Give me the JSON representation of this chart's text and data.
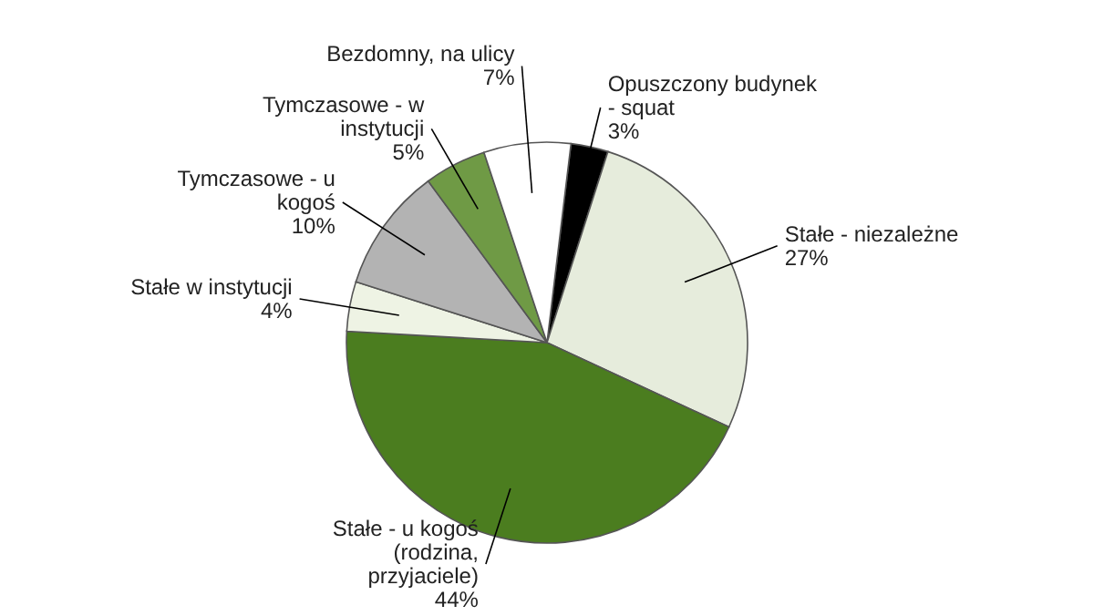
{
  "chart_data": {
    "type": "pie",
    "categories": [
      "Opuszczony budynek - squat",
      "Stałe - niezależne",
      "Stałe - u kogoś  (rodzina, przyjaciele)",
      "Stałe w instytucji",
      "Tymczasowe - u kogoś",
      "Tymczasowe - w instytucji",
      "Bezdomny, na ulicy"
    ],
    "values": [
      3,
      27,
      44,
      4,
      10,
      5,
      7
    ],
    "value_labels": [
      "3%",
      "27%",
      "44%",
      "4%",
      "10%",
      "5%",
      "7%"
    ],
    "colors": [
      "#000000",
      "#e6ecdc",
      "#4b7d1f",
      "#eef3e4",
      "#b3b3b3",
      "#6f9a45",
      "#ffffff"
    ]
  }
}
